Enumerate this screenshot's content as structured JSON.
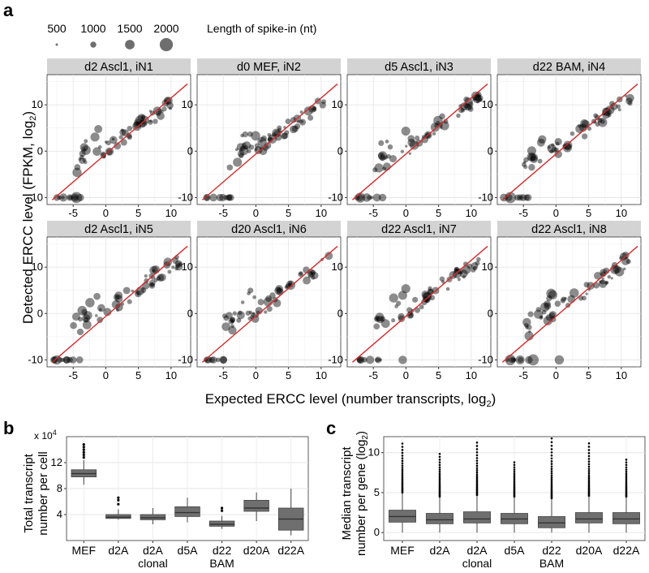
{
  "figure": {
    "panel_labels": {
      "a": "a",
      "b": "b",
      "c": "c"
    }
  },
  "chart_data": [
    {
      "type": "scatter",
      "panel": "a",
      "legend": {
        "title": "Length of spike-in (nt)",
        "sizes": [
          500,
          1000,
          1500,
          2000
        ],
        "placement": "top"
      },
      "xlabel": {
        "main": "Expected ERCC level (number transcripts, log",
        "sub": "2",
        "close": ")"
      },
      "ylabel": {
        "main": "Detected ERCC level (FPKM, log",
        "sub": "2",
        "close": ")"
      },
      "xlim": [
        -9,
        13
      ],
      "ylim": [
        -11.5,
        16.5
      ],
      "xticks": [
        -5,
        0,
        5,
        10
      ],
      "yticks": [
        -10,
        0,
        10
      ],
      "fit_line_color": "#d42a2a",
      "point_color": "#000000",
      "point_opacity": 0.45,
      "grid": true,
      "panels": [
        {
          "title": "d2 Ascl1, iN1",
          "n_high": 5,
          "dropout_x": [
            -5.5,
            -6.5,
            -7.5,
            -4.5
          ]
        },
        {
          "title": "d0 MEF, iN2",
          "n_high": 5,
          "dropout_x": [
            -5.5,
            -6.5,
            -7.5
          ]
        },
        {
          "title": "d5 Ascl1, iN3",
          "n_high": 3,
          "dropout_x": [
            -7,
            -6
          ]
        },
        {
          "title": "d22 BAM, iN4",
          "n_high": 2,
          "dropout_x": [
            -5.5,
            -7,
            -8
          ]
        },
        {
          "title": "d2 Ascl1, iN5",
          "n_high": 3,
          "dropout_x": [
            -5,
            -6,
            -7.5,
            -4
          ]
        },
        {
          "title": "d20 Ascl1, iN6",
          "n_high": 4,
          "dropout_x": [
            -5,
            -7.5
          ]
        },
        {
          "title": "d22 Ascl1, iN7",
          "n_high": 3,
          "dropout_x": [
            -5.5,
            -7,
            -0.5
          ]
        },
        {
          "title": "d22 Ascl1, iN8",
          "n_high": 5,
          "dropout_x": [
            -5.5,
            -7,
            -3.5,
            0.5
          ]
        }
      ]
    },
    {
      "type": "box",
      "panel": "b",
      "ylabel": [
        "Total transcript",
        "number per cell"
      ],
      "yscale_label": "x 10",
      "yscale_exp": "4",
      "ylim": [
        0,
        16
      ],
      "yticks": [
        4,
        8,
        12
      ],
      "categories": [
        [
          "MEF"
        ],
        [
          "d2A"
        ],
        [
          "d2A",
          "clonal"
        ],
        [
          "d5A"
        ],
        [
          "d22",
          "BAM"
        ],
        [
          "d20A"
        ],
        [
          "d22A"
        ]
      ],
      "boxes": [
        {
          "lw": 8.6,
          "q1": 9.8,
          "med": 10.3,
          "q3": 10.9,
          "uw": 12.4,
          "outliers": [
            12.8,
            13.2,
            13.6,
            14.0,
            14.4,
            14.8
          ]
        },
        {
          "lw": 3.2,
          "q1": 3.4,
          "med": 3.6,
          "q3": 4.0,
          "uw": 4.8,
          "outliers": [
            5.6,
            6.2,
            6.6
          ]
        },
        {
          "lw": 2.5,
          "q1": 3.2,
          "med": 3.5,
          "q3": 4.0,
          "uw": 5.0,
          "outliers": []
        },
        {
          "lw": 2.8,
          "q1": 3.7,
          "med": 4.3,
          "q3": 5.2,
          "uw": 6.6,
          "outliers": []
        },
        {
          "lw": 1.8,
          "q1": 2.2,
          "med": 2.5,
          "q3": 3.0,
          "uw": 3.8,
          "outliers": [
            4.6,
            5.0
          ]
        },
        {
          "lw": 3.0,
          "q1": 4.5,
          "med": 5.0,
          "q3": 6.2,
          "uw": 7.4,
          "outliers": []
        },
        {
          "lw": 0.8,
          "q1": 1.6,
          "med": 3.3,
          "q3": 5.0,
          "uw": 8.0,
          "outliers": []
        }
      ],
      "box_fill": "#6f6f6f",
      "median_color": "#333333"
    },
    {
      "type": "box",
      "panel": "c",
      "ylabel": [
        "Median transcript",
        "number per gene (log"
      ],
      "ylabel_sub": "2",
      "ylim": [
        -1,
        12
      ],
      "yticks": [
        0,
        5,
        10
      ],
      "categories": [
        [
          "MEF"
        ],
        [
          "d2A"
        ],
        [
          "d2A",
          "clonal"
        ],
        [
          "d5A"
        ],
        [
          "d22",
          "BAM"
        ],
        [
          "d20A"
        ],
        [
          "d22A"
        ]
      ],
      "boxes": [
        {
          "lw": 0.0,
          "q1": 1.3,
          "med": 2.0,
          "q3": 2.8,
          "uw": 5.0,
          "otop": 11.5
        },
        {
          "lw": 0.0,
          "q1": 1.1,
          "med": 1.6,
          "q3": 2.4,
          "uw": 4.5,
          "otop": 10.2
        },
        {
          "lw": 0.0,
          "q1": 1.2,
          "med": 1.7,
          "q3": 2.6,
          "uw": 4.7,
          "otop": 11.3
        },
        {
          "lw": 0.0,
          "q1": 1.1,
          "med": 1.7,
          "q3": 2.4,
          "uw": 4.5,
          "otop": 8.8
        },
        {
          "lw": 0.0,
          "q1": 0.6,
          "med": 1.2,
          "q3": 2.0,
          "uw": 4.3,
          "otop": 12.2
        },
        {
          "lw": 0.0,
          "q1": 1.2,
          "med": 1.7,
          "q3": 2.5,
          "uw": 4.6,
          "otop": 11.5
        },
        {
          "lw": 0.0,
          "q1": 1.1,
          "med": 1.7,
          "q3": 2.5,
          "uw": 4.5,
          "otop": 9.4
        }
      ],
      "box_fill": "#6f6f6f",
      "median_color": "#333333"
    }
  ]
}
